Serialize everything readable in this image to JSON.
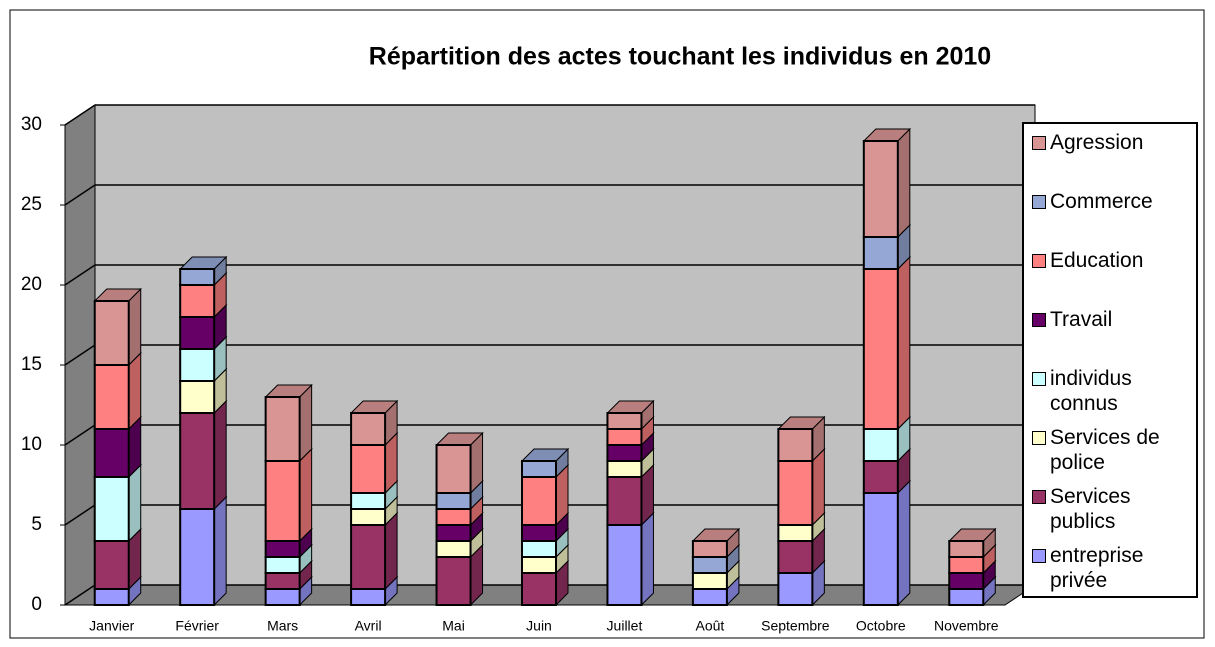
{
  "chart_data": {
    "type": "bar3d_stacked",
    "title": "Répartition des actes touchant les individus en 2010",
    "categories": [
      "Janvier",
      "Février",
      "Mars",
      "Avril",
      "Mai",
      "Juin",
      "Juillet",
      "Août",
      "Septembre",
      "Octobre",
      "Novembre"
    ],
    "series": [
      {
        "name": "entreprise privée",
        "color": "#9999ff",
        "values": [
          1,
          6,
          1,
          1,
          0,
          0,
          5,
          1,
          2,
          7,
          1
        ]
      },
      {
        "name": "Services publics",
        "color": "#993366",
        "values": [
          3,
          6,
          1,
          4,
          3,
          2,
          3,
          0,
          2,
          2,
          0
        ]
      },
      {
        "name": "Services de police",
        "color": "#ffffcc",
        "values": [
          0,
          2,
          0,
          1,
          1,
          1,
          1,
          1,
          1,
          0,
          0
        ]
      },
      {
        "name": "individus connus",
        "color": "#ccffff",
        "values": [
          4,
          2,
          1,
          1,
          0,
          1,
          0,
          0,
          0,
          2,
          0
        ]
      },
      {
        "name": "Travail",
        "color": "#660066",
        "values": [
          3,
          2,
          1,
          0,
          1,
          1,
          1,
          0,
          0,
          0,
          1
        ]
      },
      {
        "name": "Education",
        "color": "#ff8080",
        "values": [
          4,
          2,
          5,
          3,
          1,
          3,
          1,
          0,
          4,
          10,
          1
        ]
      },
      {
        "name": "Commerce",
        "color": "#95a7d4",
        "values": [
          0,
          1,
          0,
          0,
          1,
          1,
          0,
          1,
          0,
          2,
          0
        ]
      },
      {
        "name": "Agression",
        "color": "#d99594",
        "values": [
          4,
          0,
          4,
          2,
          3,
          0,
          1,
          1,
          2,
          6,
          1
        ]
      }
    ],
    "ylim": [
      0,
      30
    ],
    "yticks": [
      0,
      5,
      10,
      15,
      20,
      25,
      30
    ],
    "grid": true,
    "legend": "right"
  }
}
